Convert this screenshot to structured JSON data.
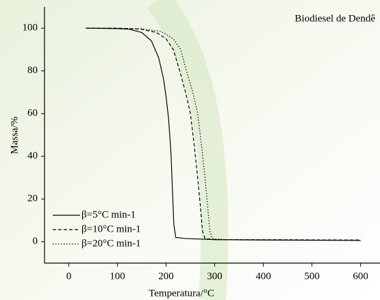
{
  "chart_data": {
    "type": "line",
    "annotation": "Biodiesel de Dendê",
    "x_label": "Temperatura/°C",
    "y_label": "Massa/%",
    "xlim": [
      -50,
      640
    ],
    "ylim": [
      -10,
      110
    ],
    "xticks": [
      0,
      100,
      200,
      300,
      400,
      500,
      600
    ],
    "yticks": [
      0,
      20,
      40,
      60,
      80,
      100
    ],
    "legend": "lower left",
    "series": [
      {
        "name": "β=5°C min-1",
        "color": "#000000",
        "dash": "solid",
        "x": [
          35,
          100,
          125,
          150,
          170,
          185,
          195,
          200,
          205,
          210,
          213,
          216,
          220,
          240,
          300,
          400,
          600
        ],
        "values": [
          100,
          99.8,
          99.5,
          98,
          94,
          86,
          76,
          68,
          58,
          42,
          25,
          8,
          2,
          1.5,
          1,
          0.8,
          0.6
        ]
      },
      {
        "name": "β=10°C min-1",
        "color": "#000000",
        "dash": "dashed",
        "x": [
          35,
          100,
          150,
          180,
          200,
          215,
          228,
          240,
          250,
          258,
          265,
          270,
          275,
          280,
          300,
          600
        ],
        "values": [
          100,
          100,
          99.5,
          98,
          95,
          90,
          80,
          70,
          60,
          45,
          30,
          18,
          5,
          1.5,
          1,
          0.8
        ]
      },
      {
        "name": "β=20°C min-1",
        "color": "#000000",
        "dash": "dotted",
        "x": [
          35,
          100,
          150,
          190,
          215,
          230,
          242,
          255,
          265,
          273,
          280,
          285,
          290,
          295,
          320,
          600
        ],
        "values": [
          100,
          100,
          99.7,
          98.5,
          95,
          90,
          80,
          70,
          60,
          45,
          30,
          18,
          5,
          1.5,
          1,
          0.8
        ]
      }
    ]
  }
}
